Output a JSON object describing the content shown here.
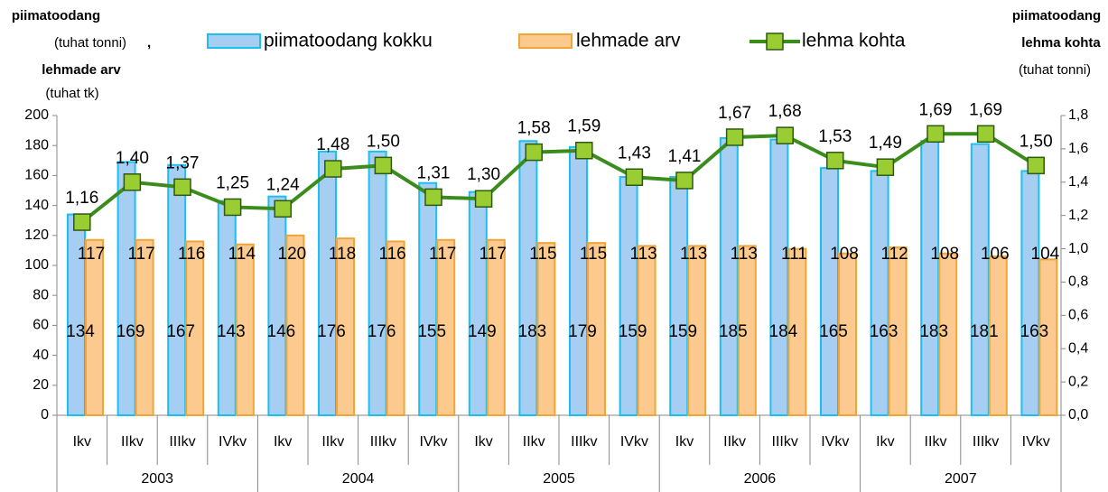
{
  "chart_data": {
    "type": "bar_line",
    "y_label": [
      "piimatoodang",
      "(tuhat tonni)",
      ",",
      "lehmade arv",
      "(tuhat tk)"
    ],
    "y2_label": [
      "piimatoodang",
      "lehma kohta",
      "(tuhat tonni)"
    ],
    "categories": [
      "Ikv",
      "IIkv",
      "IIIkv",
      "IVkv",
      "Ikv",
      "IIkv",
      "IIIkv",
      "IVkv",
      "Ikv",
      "IIkv",
      "IIIkv",
      "IVkv",
      "Ikv",
      "IIkv",
      "IIIkv",
      "IVkv",
      "Ikv",
      "IIkv",
      "IIIkv",
      "IVkv"
    ],
    "year_labels": [
      "2003",
      "2004",
      "2005",
      "2006",
      "2007"
    ],
    "series": [
      {
        "name": "piimatoodang kokku",
        "color": "#a6cdf2",
        "stroke": "#1cc0f0",
        "kind": "bar",
        "values": [
          134,
          169,
          167,
          143,
          146,
          176,
          176,
          155,
          149,
          183,
          179,
          159,
          159,
          185,
          184,
          165,
          163,
          183,
          181,
          163
        ]
      },
      {
        "name": "lehmade arv",
        "color": "#fcc98e",
        "stroke": "#f0a53a",
        "kind": "bar",
        "values": [
          117,
          117,
          116,
          114,
          120,
          118,
          116,
          117,
          117,
          115,
          115,
          113,
          113,
          113,
          111,
          108,
          112,
          108,
          106,
          104
        ]
      },
      {
        "name": "lehma kohta",
        "color": "#3a8c1c",
        "marker_color": "#9acd32",
        "kind": "line",
        "axis": "y2",
        "values": [
          1.16,
          1.4,
          1.37,
          1.25,
          1.24,
          1.48,
          1.5,
          1.31,
          1.3,
          1.58,
          1.59,
          1.43,
          1.41,
          1.67,
          1.68,
          1.53,
          1.49,
          1.69,
          1.69,
          1.5
        ],
        "value_labels": [
          "1,16",
          "1,40",
          "1,37",
          "1,25",
          "1,24",
          "1,48",
          "1,50",
          "1,31",
          "1,30",
          "1,58",
          "1,59",
          "1,43",
          "1,41",
          "1,67",
          "1,68",
          "1,53",
          "1,49",
          "1,69",
          "1,69",
          "1,50"
        ]
      }
    ],
    "ylim": [
      0,
      200
    ],
    "yticks": [
      0,
      20,
      40,
      60,
      80,
      100,
      120,
      140,
      160,
      180,
      200
    ],
    "y2lim": [
      0,
      1.8
    ],
    "y2ticks": [
      {
        "value": 0,
        "label": "0,0"
      },
      {
        "value": 0.2,
        "label": "0,2"
      },
      {
        "value": 0.4,
        "label": "0,4"
      },
      {
        "value": 0.6,
        "label": "0,6"
      },
      {
        "value": 0.8,
        "label": "0,8"
      },
      {
        "value": 1.0,
        "label": "1,0"
      },
      {
        "value": 1.2,
        "label": "1,2"
      },
      {
        "value": 1.4,
        "label": "1,4"
      },
      {
        "value": 1.6,
        "label": "1,6"
      },
      {
        "value": 1.8,
        "label": "1,8"
      }
    ]
  }
}
